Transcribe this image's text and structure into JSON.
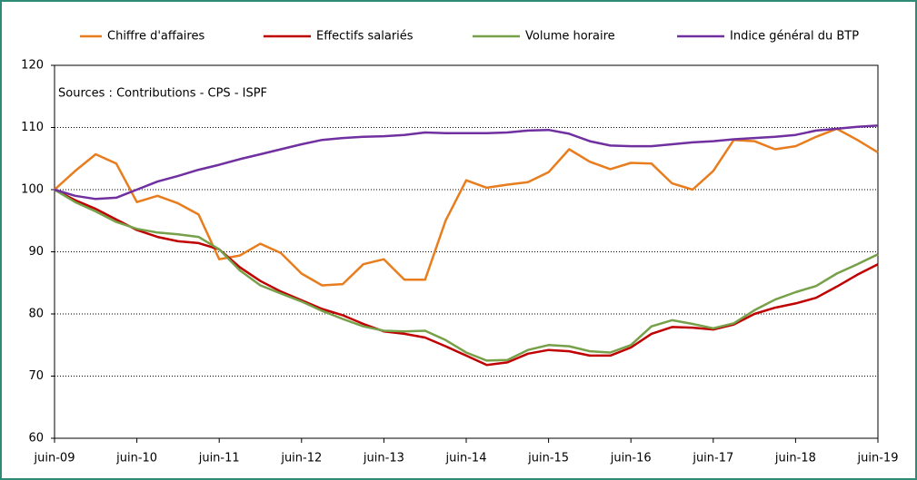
{
  "chart_data": {
    "type": "line",
    "annotation": "Sources : Contributions - CPS - ISPF",
    "categories": [
      "juin-09",
      null,
      null,
      null,
      "juin-10",
      null,
      null,
      null,
      "juin-11",
      null,
      null,
      null,
      "juin-12",
      null,
      null,
      null,
      "juin-13",
      null,
      null,
      null,
      "juin-14",
      null,
      null,
      null,
      "juin-15",
      null,
      null,
      null,
      "juin-16",
      null,
      null,
      null,
      "juin-17",
      null,
      null,
      null,
      "juin-18",
      null,
      null,
      null,
      "juin-19"
    ],
    "series": [
      {
        "name": "Chiffre d'affaires",
        "color": "#e87d1e",
        "values": [
          100,
          103,
          105.7,
          104.2,
          98,
          99,
          97.8,
          96,
          88.8,
          89.4,
          91.3,
          89.8,
          86.5,
          84.6,
          84.8,
          88,
          88.8,
          85.5,
          85.5,
          95,
          101.5,
          100.3,
          100.8,
          101.2,
          102.8,
          106.5,
          104.5,
          103.3,
          104.3,
          104.2,
          101,
          100,
          103,
          108,
          107.8,
          106.5,
          107,
          108.5,
          109.8,
          108,
          106
        ]
      },
      {
        "name": "Effectifs salariés",
        "color": "#c00000",
        "values": [
          100,
          98.3,
          96.9,
          95.2,
          93.5,
          92.4,
          91.7,
          91.4,
          90.4,
          87.5,
          85.3,
          83.6,
          82.2,
          80.8,
          79.8,
          78.4,
          77.2,
          76.8,
          76.2,
          74.8,
          73.3,
          71.8,
          72.2,
          73.6,
          74.2,
          74,
          73.3,
          73.3,
          74.6,
          76.8,
          77.9,
          77.8,
          77.5,
          78.3,
          80,
          81,
          81.7,
          82.6,
          84.4,
          86.3,
          88
        ]
      },
      {
        "name": "Volume horaire",
        "color": "#77a04a",
        "values": [
          100,
          98,
          96.5,
          94.8,
          93.7,
          93.1,
          92.8,
          92.4,
          90.4,
          87,
          84.6,
          83.3,
          82,
          80.5,
          79.2,
          78,
          77.3,
          77.2,
          77.3,
          75.8,
          73.8,
          72.5,
          72.6,
          74.2,
          75,
          74.8,
          74,
          73.8,
          75,
          78,
          79,
          78.4,
          77.7,
          78.5,
          80.6,
          82.3,
          83.5,
          84.5,
          86.5,
          88,
          89.6
        ]
      },
      {
        "name": "Indice général du BTP",
        "color": "#7030a0",
        "values": [
          100,
          99,
          98.5,
          98.7,
          100,
          101.3,
          102.2,
          103.2,
          104,
          104.9,
          105.7,
          106.5,
          107.3,
          108,
          108.3,
          108.5,
          108.6,
          108.8,
          109.2,
          109.1,
          109.1,
          109.1,
          109.2,
          109.5,
          109.6,
          109,
          107.8,
          107.1,
          107,
          107,
          107.3,
          107.6,
          107.8,
          108.1,
          108.3,
          108.5,
          108.8,
          109.5,
          109.8,
          110.1,
          110.3
        ]
      }
    ],
    "ylim": [
      60,
      120
    ],
    "yticks": [
      60,
      70,
      80,
      90,
      100,
      110,
      120
    ],
    "grid": true,
    "legend": "top"
  }
}
